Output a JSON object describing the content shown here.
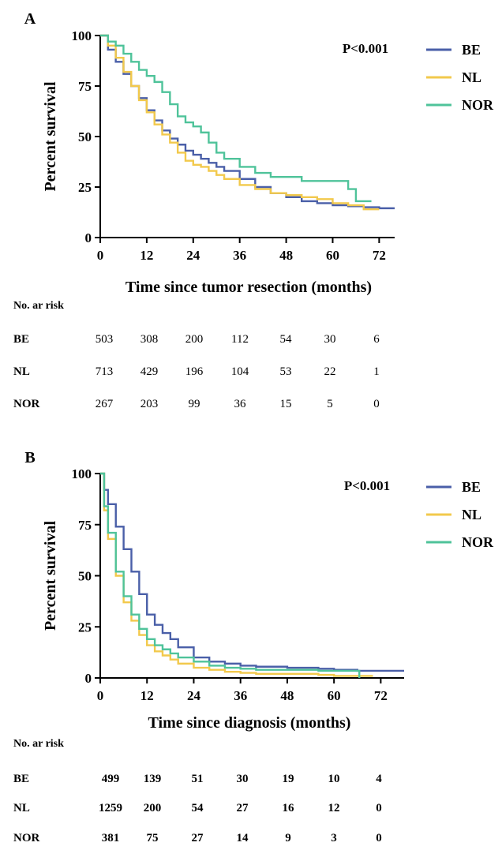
{
  "chart_data": [
    {
      "type": "line",
      "panel": "A",
      "xlabel": "Time since tumor resection (months)",
      "ylabel": "Percent survival",
      "xlim": [
        0,
        76
      ],
      "ylim": [
        0,
        100
      ],
      "xticks": [
        0,
        12,
        24,
        36,
        48,
        60,
        72
      ],
      "yticks": [
        0,
        25,
        50,
        75,
        100
      ],
      "annotation": "P<0.001",
      "legend_position": "top-right, outside plot",
      "series": [
        {
          "name": "BE",
          "color": "#4a5fa8",
          "x": [
            0,
            2,
            4,
            6,
            8,
            10,
            12,
            14,
            16,
            18,
            20,
            22,
            24,
            26,
            28,
            30,
            32,
            36,
            40,
            44,
            48,
            52,
            56,
            60,
            64,
            68,
            72,
            76
          ],
          "y": [
            100,
            93,
            87,
            81,
            75,
            69,
            63,
            58,
            53,
            49,
            46,
            43,
            41,
            39,
            37,
            35,
            33,
            29,
            25,
            22,
            20,
            18,
            17,
            16,
            15.5,
            15,
            14.5,
            14.5
          ]
        },
        {
          "name": "NL",
          "color": "#f2c94c",
          "x": [
            0,
            2,
            4,
            6,
            8,
            10,
            12,
            14,
            16,
            18,
            20,
            22,
            24,
            26,
            28,
            30,
            32,
            36,
            40,
            44,
            48,
            52,
            56,
            60,
            64,
            68,
            72
          ],
          "y": [
            100,
            95,
            89,
            82,
            75,
            68,
            62,
            56,
            51,
            47,
            42,
            38,
            36,
            35,
            33,
            31,
            29,
            26,
            24,
            22,
            21,
            20,
            19,
            17,
            16,
            14,
            14
          ]
        },
        {
          "name": "NOR",
          "color": "#4fc39a",
          "x": [
            0,
            2,
            4,
            6,
            8,
            10,
            12,
            14,
            16,
            18,
            20,
            22,
            24,
            26,
            28,
            30,
            32,
            36,
            40,
            44,
            48,
            52,
            56,
            60,
            64,
            66,
            70
          ],
          "y": [
            100,
            97,
            95,
            91,
            87,
            83,
            80,
            77,
            72,
            66,
            60,
            57,
            55,
            52,
            47,
            42,
            39,
            35,
            32,
            30,
            30,
            28,
            28,
            28,
            24,
            18,
            18
          ]
        }
      ],
      "risk_table": {
        "title": "No. ar risk",
        "rows": [
          {
            "label": "BE",
            "values": [
              "503",
              "308",
              "200",
              "112",
              "54",
              "30",
              "6"
            ]
          },
          {
            "label": "NL",
            "values": [
              "713",
              "429",
              "196",
              "104",
              "53",
              "22",
              "1"
            ]
          },
          {
            "label": "NOR",
            "values": [
              "267",
              "203",
              "99",
              "36",
              "15",
              "5",
              "0"
            ]
          }
        ]
      }
    },
    {
      "type": "line",
      "panel": "B",
      "xlabel": "Time since diagnosis (months)",
      "ylabel": "Percent survival",
      "xlim": [
        0,
        78
      ],
      "ylim": [
        0,
        100
      ],
      "xticks": [
        0,
        12,
        24,
        36,
        48,
        60,
        72
      ],
      "yticks": [
        0,
        25,
        50,
        75,
        100
      ],
      "annotation": "P<0.001",
      "legend_position": "top-right, outside plot",
      "series": [
        {
          "name": "BE",
          "color": "#4a5fa8",
          "x": [
            0,
            1,
            2,
            4,
            6,
            8,
            10,
            12,
            14,
            16,
            18,
            20,
            24,
            28,
            32,
            36,
            40,
            48,
            56,
            60,
            66,
            72,
            78
          ],
          "y": [
            100,
            92,
            85,
            74,
            63,
            52,
            41,
            31,
            26,
            22,
            19,
            15,
            10,
            8,
            7,
            6,
            5.5,
            5,
            4.5,
            4,
            3.5,
            3.5,
            3.5
          ]
        },
        {
          "name": "NL",
          "color": "#f2c94c",
          "x": [
            0,
            1,
            2,
            4,
            6,
            8,
            10,
            12,
            14,
            16,
            18,
            20,
            24,
            28,
            32,
            36,
            40,
            48,
            56,
            60,
            66,
            70
          ],
          "y": [
            100,
            82,
            68,
            50,
            37,
            28,
            21,
            16,
            13,
            11,
            9,
            7,
            5,
            4,
            3,
            2.5,
            2,
            2,
            1.5,
            1,
            1,
            1
          ]
        },
        {
          "name": "NOR",
          "color": "#4fc39a",
          "x": [
            0,
            1,
            2,
            4,
            6,
            8,
            10,
            12,
            14,
            16,
            18,
            20,
            24,
            28,
            32,
            36,
            40,
            48,
            56,
            60,
            66,
            66.5
          ],
          "y": [
            100,
            84,
            71,
            52,
            40,
            31,
            24,
            19,
            16,
            14,
            12,
            10,
            8,
            6,
            5,
            4.5,
            4,
            4,
            3.5,
            3.5,
            3.5,
            0
          ]
        }
      ],
      "risk_table": {
        "title": "No. ar risk",
        "rows": [
          {
            "label": "BE",
            "values": [
              "499",
              "139",
              "51",
              "30",
              "19",
              "10",
              "4"
            ]
          },
          {
            "label": "NL",
            "values": [
              "1259",
              "200",
              "54",
              "27",
              "16",
              "12",
              "0"
            ]
          },
          {
            "label": "NOR",
            "values": [
              "381",
              "75",
              "27",
              "14",
              "9",
              "3",
              "0"
            ]
          }
        ]
      }
    }
  ]
}
